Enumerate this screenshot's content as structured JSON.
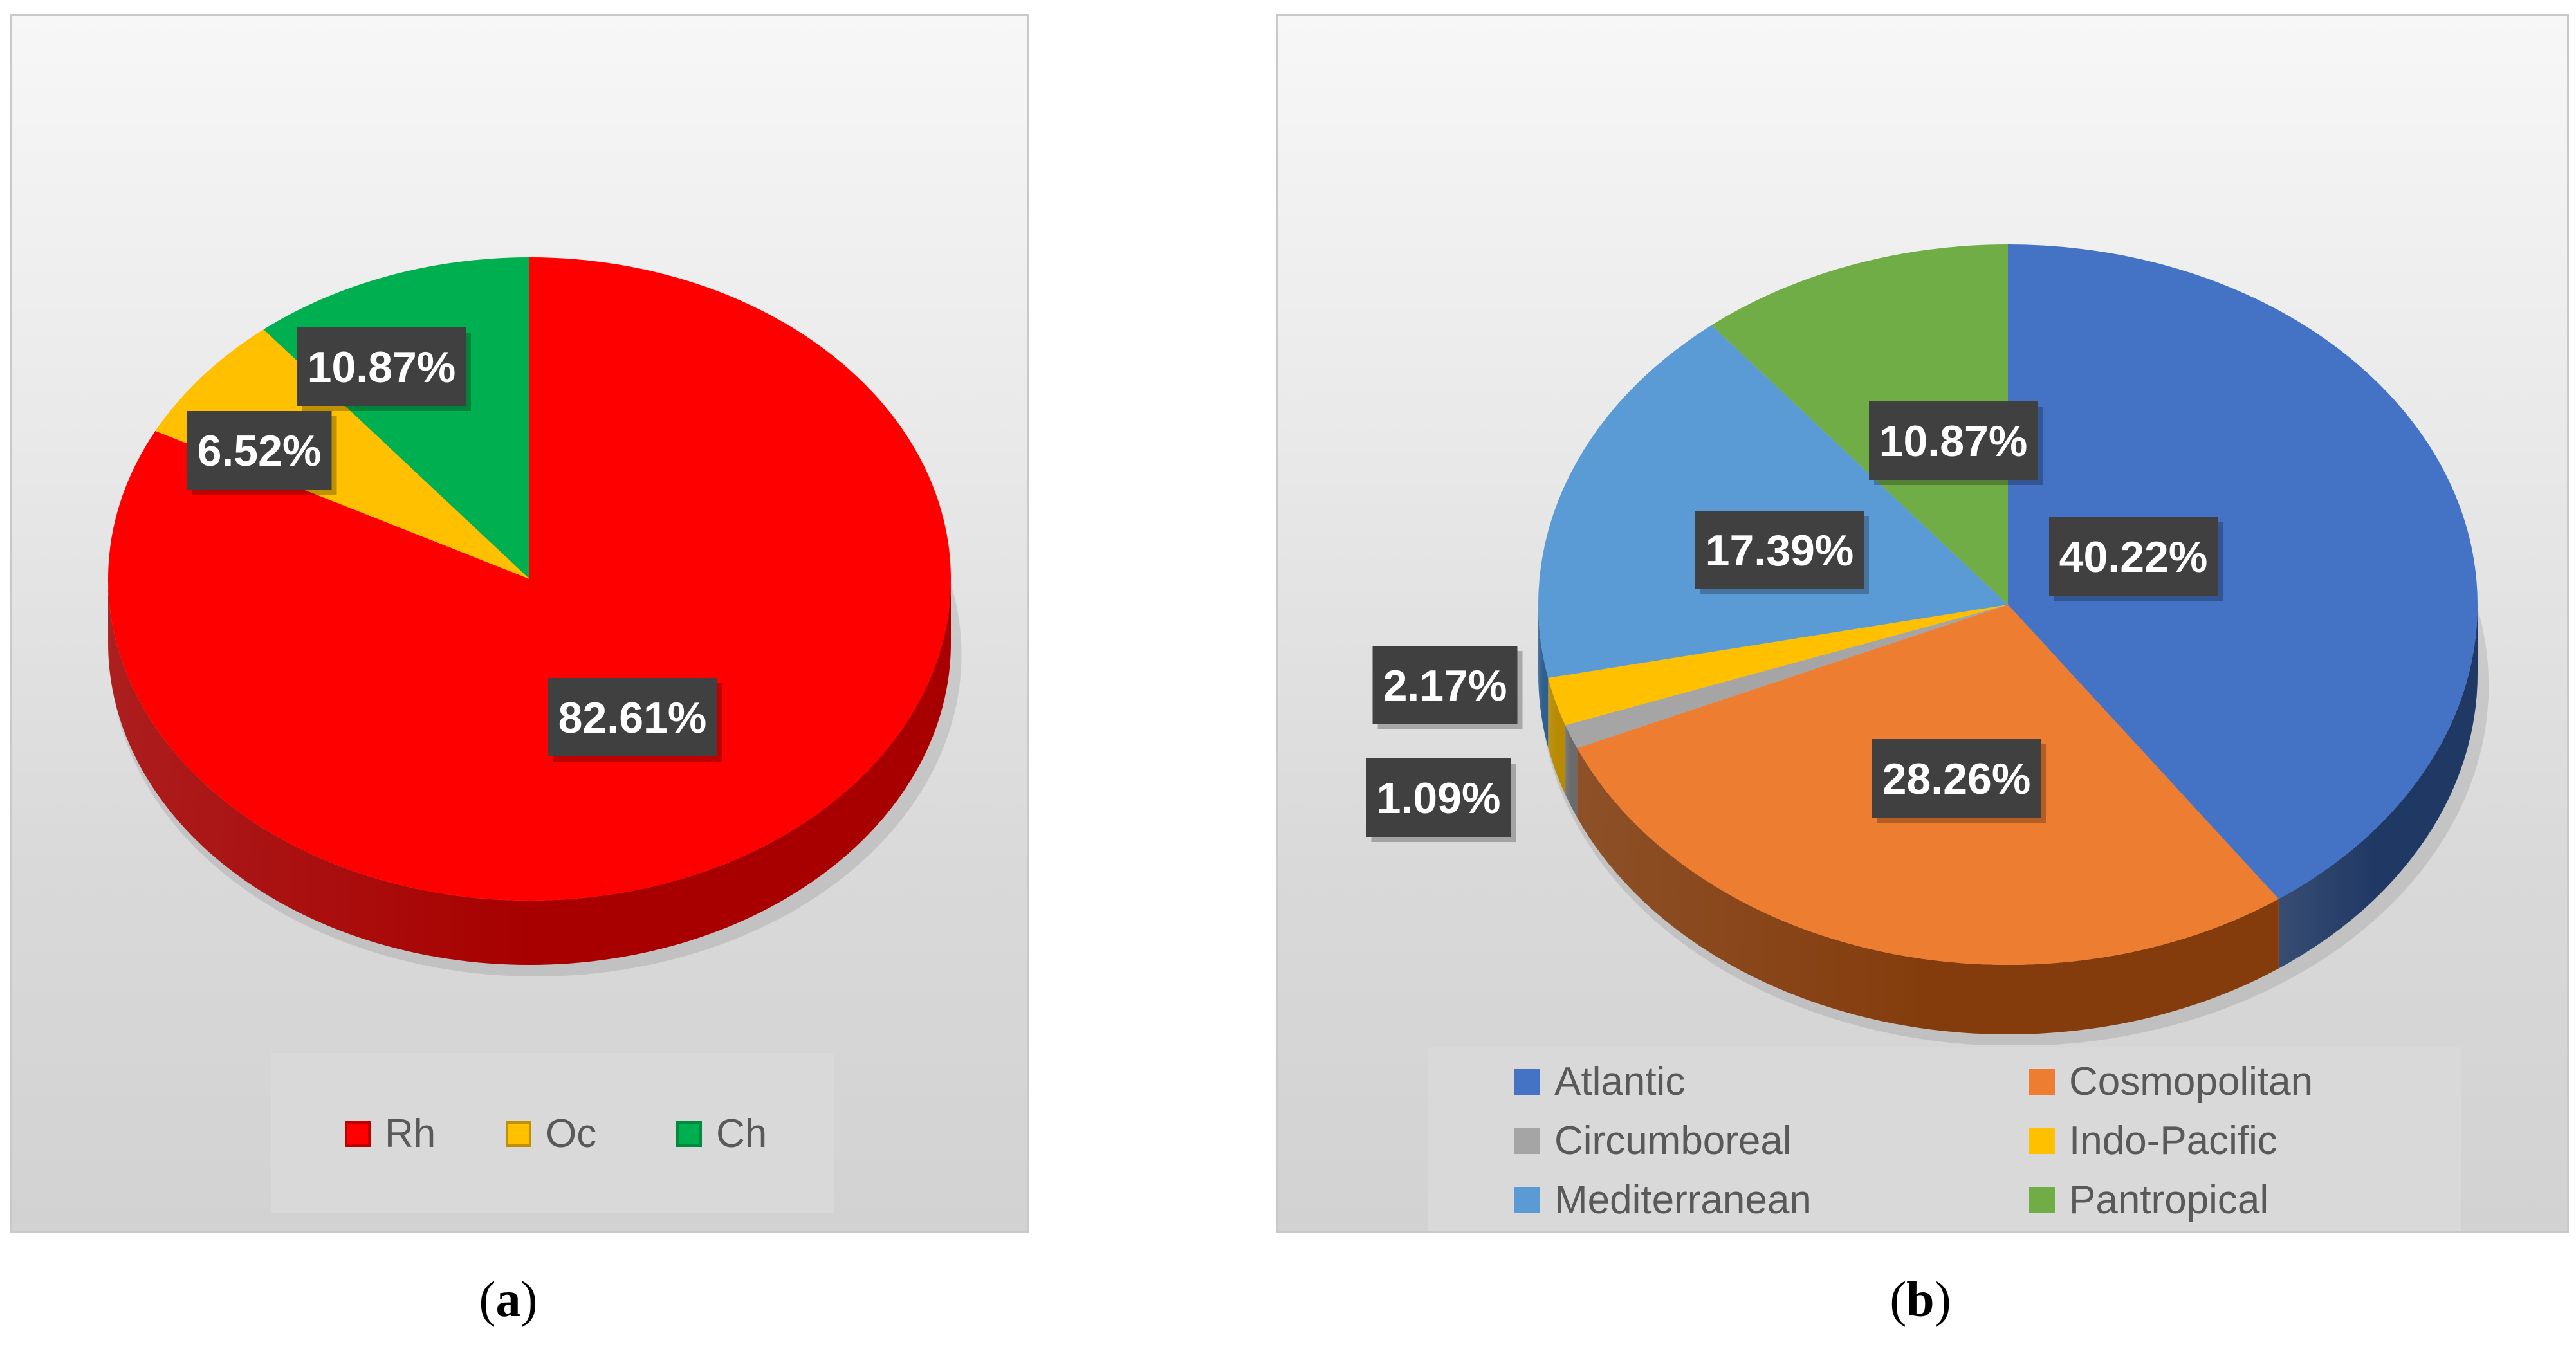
{
  "chart_data": [
    {
      "type": "pie",
      "panel": "(a)",
      "title": "",
      "slices": [
        {
          "label": "Rh",
          "value": 82.61,
          "data_label": "82.61%",
          "color": "#ff0000",
          "side_color": "#a80000"
        },
        {
          "label": "Oc",
          "value": 6.52,
          "data_label": "6.52%",
          "color": "#ffc000",
          "side_color": "#b88a00"
        },
        {
          "label": "Ch",
          "value": 10.87,
          "data_label": "10.87%",
          "color": "#00b050",
          "side_color": "#007a38"
        }
      ],
      "legend": {
        "placement": "bottom",
        "items": [
          {
            "label": "Rh",
            "color": "#ff0000",
            "border": "#c00000"
          },
          {
            "label": "Oc",
            "color": "#ffc000",
            "border": "#c09000"
          },
          {
            "label": "Ch",
            "color": "#00b050",
            "border": "#008a3e"
          }
        ]
      }
    },
    {
      "type": "pie",
      "panel": "(b)",
      "title": "",
      "slices": [
        {
          "label": "Atlantic",
          "value": 40.22,
          "data_label": "40.22%",
          "color": "#4472c4",
          "side_color": "#1f3864"
        },
        {
          "label": "Cosmopolitan",
          "value": 28.26,
          "data_label": "28.26%",
          "color": "#ed7d31",
          "side_color": "#843c0c"
        },
        {
          "label": "Circumboreal",
          "value": 1.09,
          "data_label": "1.09%",
          "color": "#a5a5a5",
          "side_color": "#6b6b6b"
        },
        {
          "label": "Indo-Pacific",
          "value": 2.17,
          "data_label": "2.17%",
          "color": "#ffc000",
          "side_color": "#b88a00"
        },
        {
          "label": "Mediterranean",
          "value": 17.39,
          "data_label": "17.39%",
          "color": "#5b9bd5",
          "side_color": "#2e5f8f"
        },
        {
          "label": "Pantropical",
          "value": 10.87,
          "data_label": "10.87%",
          "color": "#70ad47",
          "side_color": "#3e6b24"
        }
      ],
      "legend": {
        "placement": "bottom",
        "items": [
          {
            "label": "Atlantic",
            "color": "#4472c4"
          },
          {
            "label": "Cosmopolitan",
            "color": "#ed7d31"
          },
          {
            "label": "Circumboreal",
            "color": "#a5a5a5"
          },
          {
            "label": "Indo-Pacific",
            "color": "#ffc000"
          },
          {
            "label": "Mediterranean",
            "color": "#5b9bd5"
          },
          {
            "label": "Pantropical",
            "color": "#70ad47"
          }
        ]
      }
    }
  ],
  "captions": {
    "a": {
      "open": "(",
      "letter": "a",
      "close": ")"
    },
    "b": {
      "open": "(",
      "letter": "b",
      "close": ")"
    }
  }
}
